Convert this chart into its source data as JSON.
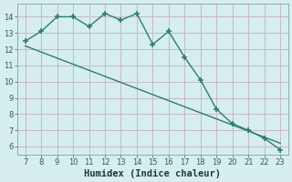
{
  "x": [
    7,
    8,
    9,
    10,
    11,
    12,
    13,
    14,
    15,
    16,
    17,
    18,
    19,
    20,
    21,
    22,
    23
  ],
  "y_main": [
    12.5,
    13.1,
    14.0,
    14.0,
    13.4,
    14.2,
    13.8,
    14.2,
    12.3,
    13.1,
    11.5,
    10.1,
    8.3,
    7.4,
    7.0,
    6.5,
    5.8
  ],
  "y_trend_x": [
    7,
    23
  ],
  "y_trend_y": [
    12.2,
    6.2
  ],
  "line_color": "#2e7d6e",
  "bg_color": "#d6eeee",
  "grid_color_major": "#c8b8c8",
  "grid_color_minor": "#c8b8c8",
  "xlabel": "Humidex (Indice chaleur)",
  "xlim": [
    6.5,
    23.5
  ],
  "ylim": [
    5.5,
    14.8
  ],
  "xticks": [
    7,
    8,
    9,
    10,
    11,
    12,
    13,
    14,
    15,
    16,
    17,
    18,
    19,
    20,
    21,
    22,
    23
  ],
  "yticks": [
    6,
    7,
    8,
    9,
    10,
    11,
    12,
    13,
    14
  ],
  "marker": "+",
  "marker_size": 5,
  "linewidth": 1.0,
  "xlabel_fontsize": 7.5
}
